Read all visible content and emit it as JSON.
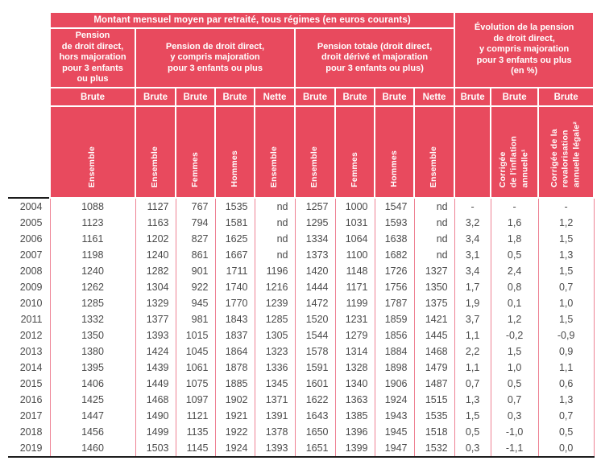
{
  "colors": {
    "header_red": "#e84a5e",
    "separator_pink": "#ee8294",
    "rule_black": "#1c1c1c",
    "body_text": "#4a4a4a",
    "header_text": "#ffffff"
  },
  "chart_data": {
    "type": "table",
    "title": "Montant mensuel moyen par retraité, tous régimes (en euros courants)",
    "header": {
      "montant": "Montant mensuel moyen par retraité, tous régimes (en euros courants)",
      "evolution": "Évolution de la pension\nde droit direct,\ny compris majoration\npour 3 enfants ou plus\n(en %)",
      "groups": [
        "Pension\nde droit direct,\nhors majoration\npour 3 enfants\nou plus",
        "Pension de droit direct,\ny compris majoration\npour 3 enfants ou plus",
        "Pension totale (droit direct,\ndroit dérivé et majoration\npour 3 enfants ou plus)"
      ],
      "measures": [
        "Brute",
        "Brute",
        "Brute",
        "Brute",
        "Nette",
        "Brute",
        "Brute",
        "Brute",
        "Nette",
        "Brute",
        "Brute",
        "Brute"
      ],
      "subcolumns": [
        "Ensemble",
        "Ensemble",
        "Femmes",
        "Hommes",
        "Ensemble",
        "Ensemble",
        "Femmes",
        "Hommes",
        "Ensemble",
        "",
        "Corrigée\nde l'inflation\nannuelle¹",
        "Corrigée de la\nrevalorisation\nannuelle légale²"
      ]
    },
    "rows": [
      [
        "2004",
        "1088",
        "1127",
        "767",
        "1535",
        "nd",
        "1257",
        "1000",
        "1547",
        "nd",
        "-",
        "-",
        "-"
      ],
      [
        "2005",
        "1123",
        "1163",
        "794",
        "1581",
        "nd",
        "1295",
        "1031",
        "1593",
        "nd",
        "3,2",
        "1,6",
        "1,2"
      ],
      [
        "2006",
        "1161",
        "1202",
        "827",
        "1625",
        "nd",
        "1334",
        "1064",
        "1638",
        "nd",
        "3,4",
        "1,8",
        "1,5"
      ],
      [
        "2007",
        "1198",
        "1240",
        "861",
        "1667",
        "nd",
        "1373",
        "1100",
        "1682",
        "nd",
        "3,1",
        "0,5",
        "1,3"
      ],
      [
        "2008",
        "1240",
        "1282",
        "901",
        "1711",
        "1196",
        "1420",
        "1148",
        "1726",
        "1327",
        "3,4",
        "2,4",
        "1,5"
      ],
      [
        "2009",
        "1262",
        "1304",
        "922",
        "1740",
        "1216",
        "1444",
        "1171",
        "1756",
        "1350",
        "1,7",
        "0,8",
        "0,7"
      ],
      [
        "2010",
        "1285",
        "1329",
        "945",
        "1770",
        "1239",
        "1472",
        "1199",
        "1787",
        "1375",
        "1,9",
        "0,1",
        "1,0"
      ],
      [
        "2011",
        "1332",
        "1377",
        "981",
        "1843",
        "1285",
        "1520",
        "1231",
        "1859",
        "1421",
        "3,7",
        "1,2",
        "1,5"
      ],
      [
        "2012",
        "1350",
        "1393",
        "1015",
        "1837",
        "1305",
        "1544",
        "1279",
        "1856",
        "1445",
        "1,1",
        "-0,2",
        "-0,9"
      ],
      [
        "2013",
        "1380",
        "1424",
        "1045",
        "1864",
        "1323",
        "1578",
        "1314",
        "1884",
        "1468",
        "2,2",
        "1,5",
        "0,9"
      ],
      [
        "2014",
        "1395",
        "1439",
        "1061",
        "1878",
        "1336",
        "1591",
        "1328",
        "1898",
        "1479",
        "1,1",
        "1,0",
        "1,1"
      ],
      [
        "2015",
        "1406",
        "1449",
        "1075",
        "1885",
        "1345",
        "1601",
        "1340",
        "1906",
        "1487",
        "0,7",
        "0,5",
        "0,6"
      ],
      [
        "2016",
        "1425",
        "1468",
        "1097",
        "1902",
        "1371",
        "1622",
        "1363",
        "1924",
        "1515",
        "1,3",
        "0,7",
        "1,3"
      ],
      [
        "2017",
        "1447",
        "1490",
        "1121",
        "1921",
        "1391",
        "1643",
        "1385",
        "1943",
        "1535",
        "1,5",
        "0,3",
        "0,7"
      ],
      [
        "2018",
        "1456",
        "1499",
        "1135",
        "1922",
        "1378",
        "1650",
        "1396",
        "1945",
        "1518",
        "0,5",
        "-1,0",
        "0,5"
      ],
      [
        "2019",
        "1460",
        "1503",
        "1145",
        "1924",
        "1393",
        "1651",
        "1399",
        "1947",
        "1532",
        "0,3",
        "-1,1",
        "0,0"
      ]
    ]
  }
}
